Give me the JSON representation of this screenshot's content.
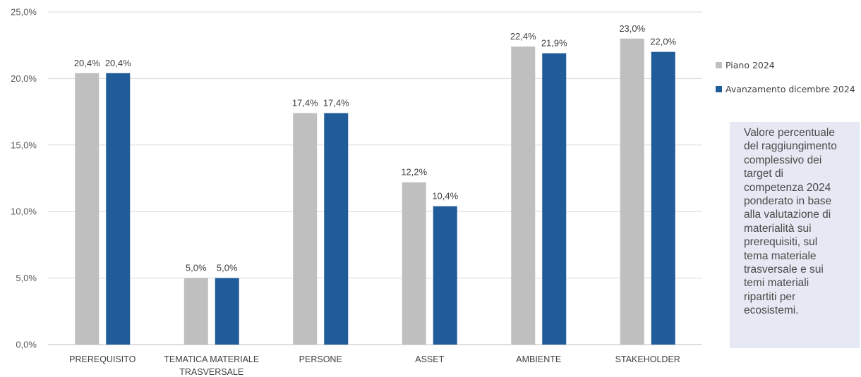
{
  "chart_data": {
    "type": "bar",
    "categories": [
      [
        "PREREQUISITO"
      ],
      [
        "TEMATICA MATERIALE",
        "TRASVERSALE"
      ],
      [
        "PERSONE"
      ],
      [
        "ASSET"
      ],
      [
        "AMBIENTE"
      ],
      [
        "STAKEHOLDER"
      ]
    ],
    "series": [
      {
        "name": "Piano 2024",
        "color": "#bfbfbf",
        "values": [
          20.4,
          5.0,
          17.4,
          12.2,
          22.4,
          23.0
        ],
        "labels": [
          "20,4%",
          "5,0%",
          "17,4%",
          "12,2%",
          "22,4%",
          "23,0%"
        ]
      },
      {
        "name": "Avanzamento dicembre 2024",
        "color": "#1f5c99",
        "values": [
          20.4,
          5.0,
          17.4,
          10.4,
          21.9,
          22.0
        ],
        "labels": [
          "20,4%",
          "5,0%",
          "17,4%",
          "10,4%",
          "21,9%",
          "22,0%"
        ]
      }
    ],
    "y_ticks": [
      0,
      5,
      10,
      15,
      20,
      25
    ],
    "y_tick_labels": [
      "0,0%",
      "5,0%",
      "10,0%",
      "15,0%",
      "20,0%",
      "25,0%"
    ],
    "ylim": [
      0,
      25
    ],
    "grid": true,
    "legend_position": "right"
  },
  "legend": {
    "items": [
      {
        "label": "Piano 2024",
        "color": "#bfbfbf"
      },
      {
        "label": "Avanzamento dicembre 2024",
        "color": "#1f5c99"
      }
    ]
  },
  "note": {
    "lines": [
      "Valore percentuale",
      "del raggiungimento",
      "complessivo dei",
      "target di",
      "competenza 2024",
      "ponderato in base",
      "alla valutazione di",
      "materialità sui",
      "prerequisiti, sul",
      "tema materiale",
      "trasversale e sui",
      "temi materiali",
      "ripartiti per",
      "ecosistemi."
    ]
  }
}
